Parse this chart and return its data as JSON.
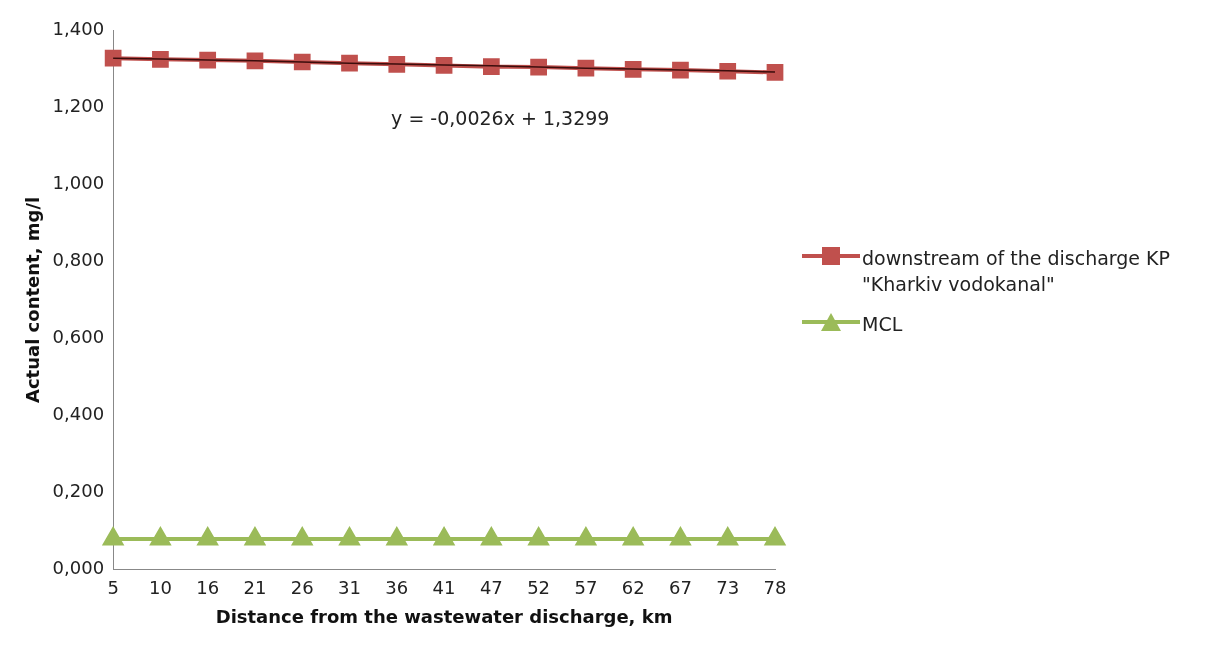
{
  "chart_data": {
    "type": "line",
    "xlabel": "Distance from the wastewater discharge, km",
    "ylabel": "Actual content, mg/l",
    "categories": [
      "5",
      "10",
      "16",
      "21",
      "26",
      "31",
      "36",
      "41",
      "47",
      "52",
      "57",
      "62",
      "67",
      "73",
      "78"
    ],
    "series": [
      {
        "name": "downstream of the discharge KP \"Kharkiv vodokanal\"",
        "color": "#c0504d",
        "marker": "square",
        "values": [
          1.327,
          1.324,
          1.322,
          1.32,
          1.317,
          1.314,
          1.311,
          1.308,
          1.305,
          1.304,
          1.301,
          1.298,
          1.296,
          1.293,
          1.29
        ]
      },
      {
        "name": "MCL",
        "color": "#9bbb59",
        "marker": "triangle",
        "values": [
          0.08,
          0.08,
          0.08,
          0.08,
          0.08,
          0.08,
          0.08,
          0.08,
          0.08,
          0.08,
          0.08,
          0.08,
          0.08,
          0.08,
          0.08
        ]
      },
      {
        "color": "#3b0d0c",
        "marker": "none",
        "values": [
          1.327,
          1.325,
          1.322,
          1.32,
          1.317,
          1.314,
          1.312,
          1.309,
          1.307,
          1.304,
          1.301,
          1.299,
          1.296,
          1.294,
          1.291
        ]
      }
    ],
    "ylim": [
      0,
      1.4
    ],
    "yticks": [
      {
        "value": 0,
        "label": "0,000"
      },
      {
        "value": 0.2,
        "label": "0,200"
      },
      {
        "value": 0.4,
        "label": "0,400"
      },
      {
        "value": 0.6,
        "label": "0,600"
      },
      {
        "value": 0.8,
        "label": "0,800"
      },
      {
        "value": 1.0,
        "label": "1,000"
      },
      {
        "value": 1.2,
        "label": "1,200"
      },
      {
        "value": 1.4,
        "label": "1,400"
      }
    ],
    "grid": false,
    "legend": "right",
    "annotations": [
      "y = -0,0026x + 1,3299"
    ]
  }
}
